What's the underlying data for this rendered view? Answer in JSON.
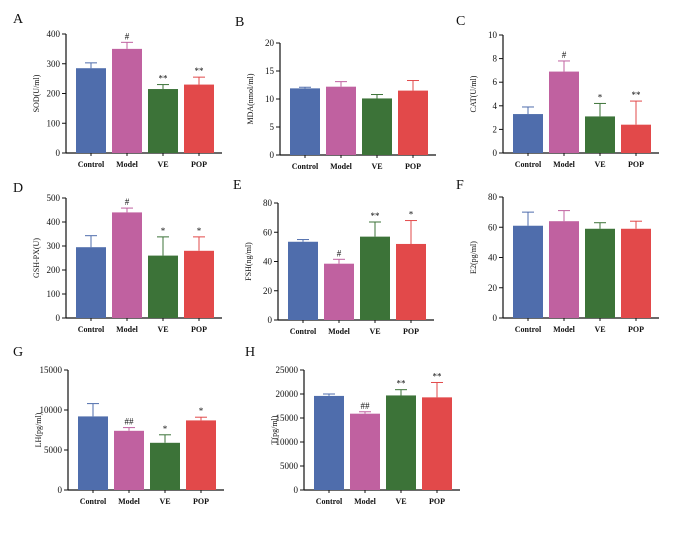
{
  "colors": {
    "Control": "#4f6dac",
    "Model": "#c061a0",
    "VE": "#3c7338",
    "POP": "#e2494a",
    "axis": "#111111"
  },
  "chart_data": [
    {
      "type": "bar",
      "panel": "A",
      "ylabel": "SOD(U/ml)",
      "ylim": [
        0,
        400
      ],
      "yticks": [
        "0",
        "100",
        "200",
        "300",
        "400"
      ],
      "categories": [
        "Control",
        "Model",
        "VE",
        "POP"
      ],
      "values": [
        285,
        350,
        215,
        230
      ],
      "errors": [
        18,
        22,
        15,
        25
      ],
      "labels": [
        "",
        "#",
        "**",
        "**"
      ]
    },
    {
      "type": "bar",
      "panel": "B",
      "ylabel": "MDA(nmol/ml)",
      "ylim": [
        0,
        20
      ],
      "yticks": [
        "0",
        "5",
        "10",
        "15",
        "20"
      ],
      "categories": [
        "Control",
        "Model",
        "VE",
        "POP"
      ],
      "values": [
        11.9,
        12.2,
        10.1,
        11.5
      ],
      "errors": [
        0.2,
        0.9,
        0.7,
        1.8
      ],
      "labels": [
        "",
        "",
        "",
        ""
      ]
    },
    {
      "type": "bar",
      "panel": "C",
      "ylabel": "CAT(U/ml)",
      "ylim": [
        0,
        10
      ],
      "yticks": [
        "0",
        "2",
        "4",
        "6",
        "8",
        "10"
      ],
      "categories": [
        "Control",
        "Model",
        "VE",
        "POP"
      ],
      "values": [
        3.3,
        6.9,
        3.1,
        2.4
      ],
      "errors": [
        0.6,
        0.9,
        1.1,
        2.0
      ],
      "labels": [
        "",
        "#",
        "*",
        "**"
      ]
    },
    {
      "type": "bar",
      "panel": "D",
      "ylabel": "GSH-PX(U)",
      "ylim": [
        0,
        500
      ],
      "yticks": [
        "0",
        "100",
        "200",
        "300",
        "400",
        "500"
      ],
      "categories": [
        "Control",
        "Model",
        "VE",
        "POP"
      ],
      "values": [
        295,
        440,
        260,
        280
      ],
      "errors": [
        48,
        18,
        78,
        58
      ],
      "labels": [
        "",
        "#",
        "*",
        "*"
      ]
    },
    {
      "type": "bar",
      "panel": "E",
      "ylabel": "FSH(ng/ml)",
      "ylim": [
        0,
        80
      ],
      "yticks": [
        "0",
        "20",
        "40",
        "60",
        "80"
      ],
      "categories": [
        "Control",
        "Model",
        "VE",
        "POP"
      ],
      "values": [
        53.5,
        38.5,
        57,
        52
      ],
      "errors": [
        1.5,
        3,
        10,
        16
      ],
      "labels": [
        "",
        "#",
        "**",
        "*"
      ]
    },
    {
      "type": "bar",
      "panel": "F",
      "ylabel": "E2(pg/ml)",
      "ylim": [
        0,
        80
      ],
      "yticks": [
        "0",
        "20",
        "40",
        "60",
        "80"
      ],
      "categories": [
        "Control",
        "Model",
        "VE",
        "POP"
      ],
      "values": [
        61,
        64,
        59,
        59
      ],
      "errors": [
        9,
        7,
        4,
        5
      ],
      "labels": [
        "",
        "",
        "",
        ""
      ]
    },
    {
      "type": "bar",
      "panel": "G",
      "ylabel": "LH(pg/ml)",
      "ylim": [
        0,
        15000
      ],
      "yticks": [
        "0",
        "5000",
        "10000",
        "15000"
      ],
      "categories": [
        "Control",
        "Model",
        "VE",
        "POP"
      ],
      "values": [
        9200,
        7400,
        5900,
        8700
      ],
      "errors": [
        1600,
        400,
        1000,
        400
      ],
      "labels": [
        "",
        "##",
        "*",
        "*"
      ]
    },
    {
      "type": "bar",
      "panel": "H",
      "ylabel": "T(pg/ml)",
      "ylim": [
        0,
        25000
      ],
      "yticks": [
        "0",
        "5000",
        "10000",
        "15000",
        "20000",
        "25000"
      ],
      "categories": [
        "Control",
        "Model",
        "VE",
        "POP"
      ],
      "values": [
        19600,
        15900,
        19700,
        19300
      ],
      "errors": [
        400,
        400,
        1200,
        3100
      ],
      "labels": [
        "",
        "##",
        "**",
        "**"
      ]
    }
  ]
}
